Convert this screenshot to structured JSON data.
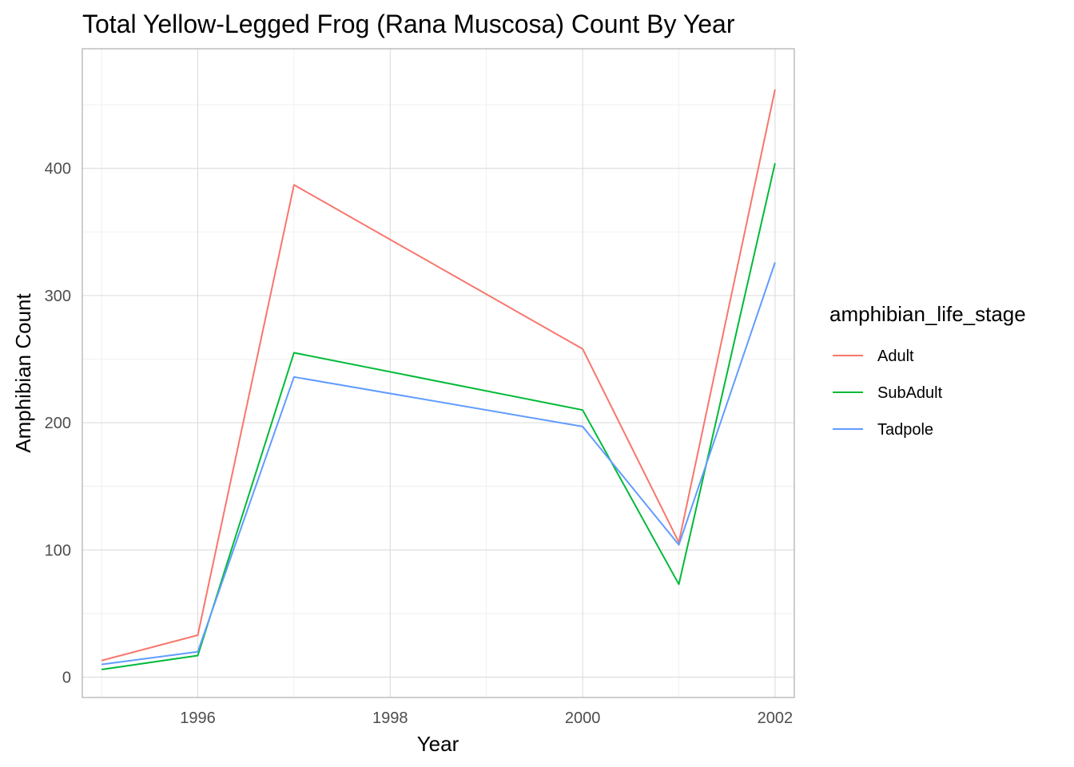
{
  "chart_data": {
    "type": "line",
    "title": "Total Yellow-Legged Frog (Rana Muscosa) Count By Year",
    "xlabel": "Year",
    "ylabel": "Amphibian Count",
    "xlim": [
      1994.8,
      2002.2
    ],
    "ylim": [
      -16,
      494
    ],
    "x_ticks": [
      1996,
      1998,
      2000,
      2002
    ],
    "y_ticks": [
      0,
      100,
      200,
      300,
      400
    ],
    "grid": true,
    "legend": {
      "title": "amphibian_life_stage",
      "position": "right"
    },
    "x": [
      1995,
      1996,
      1997,
      2000,
      2001,
      2002
    ],
    "series": [
      {
        "name": "Adult",
        "color": "#F8766D",
        "values": [
          13,
          33,
          387,
          258,
          106,
          462
        ]
      },
      {
        "name": "SubAdult",
        "color": "#00BA38",
        "values": [
          6,
          17,
          255,
          210,
          73,
          404
        ]
      },
      {
        "name": "Tadpole",
        "color": "#619CFF",
        "values": [
          10,
          20,
          236,
          197,
          104,
          326
        ]
      }
    ]
  }
}
